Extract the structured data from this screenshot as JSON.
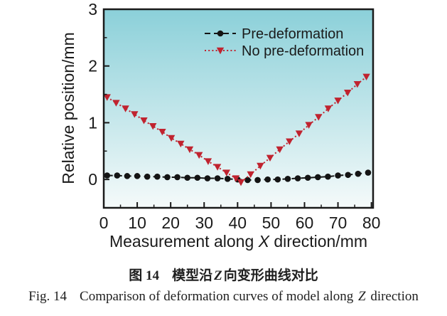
{
  "figure": {
    "caption_cn": {
      "label": "图 14",
      "pre": "模型沿",
      "italic_var": "Z",
      "post": "向变形曲线对比"
    },
    "caption_en": {
      "label": "Fig. 14",
      "pre": "Comparison of deformation curves of model along ",
      "italic_var": "Z",
      "post": " direction"
    }
  },
  "chart_data": {
    "type": "line",
    "title": "",
    "xlabel": {
      "pre": "Measurement along ",
      "italic_var": "X",
      "post": " direction/mm"
    },
    "ylabel": "Relative position/mm",
    "xlim": [
      0,
      80.5
    ],
    "ylim": [
      -0.5,
      3
    ],
    "xticks": [
      0,
      10,
      20,
      30,
      40,
      50,
      60,
      70,
      80
    ],
    "yticks": [
      0,
      1,
      2,
      3
    ],
    "x_minor_step": 5,
    "y_minor_step": 0.5,
    "grid": false,
    "legend": {
      "position": "top-right-inside"
    },
    "colors": {
      "axis": "#1a1a1a",
      "text": "#1a1a1a",
      "plot_bg_top": "#8bd0d9",
      "plot_bg_bottom": "#f5fafa",
      "pre_deformation": "#141414",
      "no_pre_deformation": "#c0232f"
    },
    "series": [
      {
        "name": "Pre-deformation",
        "color": "#141414",
        "marker": "circle",
        "line_style": "dashed",
        "points": [
          [
            1,
            0.07
          ],
          [
            4,
            0.07
          ],
          [
            7,
            0.06
          ],
          [
            10,
            0.06
          ],
          [
            13,
            0.05
          ],
          [
            16,
            0.05
          ],
          [
            19,
            0.04
          ],
          [
            22,
            0.04
          ],
          [
            25,
            0.03
          ],
          [
            28,
            0.03
          ],
          [
            31,
            0.02
          ],
          [
            34,
            0.02
          ],
          [
            37,
            0.01
          ],
          [
            40,
            0.0
          ],
          [
            43,
            -0.01
          ],
          [
            46,
            -0.01
          ],
          [
            49,
            0.0
          ],
          [
            52,
            0.0
          ],
          [
            55,
            0.01
          ],
          [
            58,
            0.02
          ],
          [
            61,
            0.03
          ],
          [
            64,
            0.04
          ],
          [
            67,
            0.05
          ],
          [
            70,
            0.07
          ],
          [
            73,
            0.08
          ],
          [
            76,
            0.1
          ],
          [
            79,
            0.12
          ]
        ]
      },
      {
        "name": "No pre-deformation",
        "color": "#c0232f",
        "marker": "triangle-down",
        "line_style": "dotted",
        "points": [
          [
            1,
            1.45
          ],
          [
            3.7,
            1.35
          ],
          [
            6.5,
            1.25
          ],
          [
            9.2,
            1.15
          ],
          [
            12,
            1.04
          ],
          [
            14.7,
            0.94
          ],
          [
            17.5,
            0.84
          ],
          [
            20.2,
            0.73
          ],
          [
            23,
            0.63
          ],
          [
            25.7,
            0.53
          ],
          [
            28.5,
            0.43
          ],
          [
            31.2,
            0.32
          ],
          [
            34,
            0.22
          ],
          [
            36.7,
            0.12
          ],
          [
            39.5,
            0.02
          ],
          [
            41,
            -0.05
          ],
          [
            43.9,
            0.09
          ],
          [
            46.8,
            0.24
          ],
          [
            49.7,
            0.38
          ],
          [
            52.6,
            0.53
          ],
          [
            55.5,
            0.67
          ],
          [
            58.4,
            0.81
          ],
          [
            61.3,
            0.96
          ],
          [
            64.2,
            1.1
          ],
          [
            67.1,
            1.25
          ],
          [
            70,
            1.39
          ],
          [
            72.9,
            1.53
          ],
          [
            75.8,
            1.68
          ],
          [
            78.5,
            1.81
          ]
        ]
      }
    ]
  }
}
